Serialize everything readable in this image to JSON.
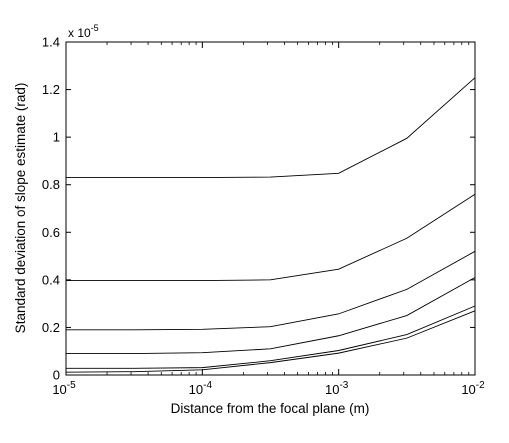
{
  "chart_data": {
    "type": "line",
    "title": "",
    "xlabel": "Distance from the focal plane (m)",
    "ylabel": "Standard deviation of slope estimate (rad)",
    "x_scale": "log",
    "xlim": [
      1e-05,
      0.01
    ],
    "ylim": [
      0,
      1.4e-05
    ],
    "y_multiplier_label": "x 10",
    "y_multiplier_exponent": "-5",
    "x_ticks": [
      {
        "value": 1e-05,
        "base": "10",
        "exp": "-5"
      },
      {
        "value": 0.0001,
        "base": "10",
        "exp": "-4"
      },
      {
        "value": 0.001,
        "base": "10",
        "exp": "-3"
      },
      {
        "value": 0.01,
        "base": "10",
        "exp": "-2"
      }
    ],
    "y_ticks": [
      {
        "value": 0,
        "label": "0"
      },
      {
        "value": 2e-06,
        "label": "0.2"
      },
      {
        "value": 4e-06,
        "label": "0.4"
      },
      {
        "value": 6e-06,
        "label": "0.6"
      },
      {
        "value": 8e-06,
        "label": "0.8"
      },
      {
        "value": 1e-05,
        "label": "1"
      },
      {
        "value": 1.2e-05,
        "label": "1.2"
      },
      {
        "value": 1.4e-05,
        "label": "1.4"
      }
    ],
    "grid": false,
    "x": [
      1e-05,
      3.16e-05,
      0.0001,
      0.000316,
      0.001,
      0.00316,
      0.01
    ],
    "series": [
      {
        "values": [
          8.3e-06,
          8.3e-06,
          8.3e-06,
          8.32e-06,
          8.48e-06,
          9.95e-06,
          1.25e-05
        ]
      },
      {
        "values": [
          3.97e-06,
          3.97e-06,
          3.97e-06,
          4e-06,
          4.45e-06,
          5.75e-06,
          7.6e-06
        ]
      },
      {
        "values": [
          1.9e-06,
          1.9e-06,
          1.92e-06,
          2.03e-06,
          2.57e-06,
          3.6e-06,
          5.2e-06
        ]
      },
      {
        "values": [
          9e-07,
          9e-07,
          9.4e-07,
          1.1e-06,
          1.65e-06,
          2.5e-06,
          4.1e-06
        ]
      },
      {
        "values": [
          2.8e-07,
          2.8e-07,
          3.1e-07,
          6e-07,
          1.03e-06,
          1.7e-06,
          2.9e-06
        ]
      },
      {
        "values": [
          1.2e-07,
          1.4e-07,
          2.2e-07,
          5.2e-07,
          9.2e-07,
          1.55e-06,
          2.7e-06
        ]
      }
    ],
    "line_color": "#000000"
  }
}
